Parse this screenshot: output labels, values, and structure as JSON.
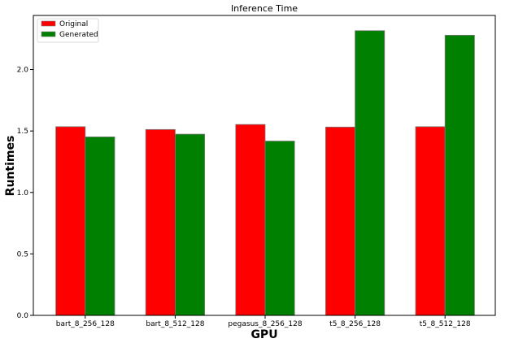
{
  "chart_data": {
    "type": "bar",
    "title": "Inference Time",
    "xlabel": "GPU",
    "ylabel": "Runtimes",
    "categories": [
      "bart_8_256_128",
      "bart_8_512_128",
      "pegasus_8_256_128",
      "t5_8_256_128",
      "t5_8_512_128"
    ],
    "series": [
      {
        "name": "Original",
        "color": "#ff0000",
        "values": [
          1.535,
          1.512,
          1.553,
          1.532,
          1.535
        ]
      },
      {
        "name": "Generated",
        "color": "#008000",
        "values": [
          1.452,
          1.474,
          1.418,
          2.316,
          2.279
        ]
      }
    ],
    "ylim": [
      0,
      2.44
    ],
    "yticks": [
      "0.0",
      "0.5",
      "1.0",
      "1.5",
      "2.0"
    ],
    "grid": false,
    "legend_position": "top-left"
  }
}
